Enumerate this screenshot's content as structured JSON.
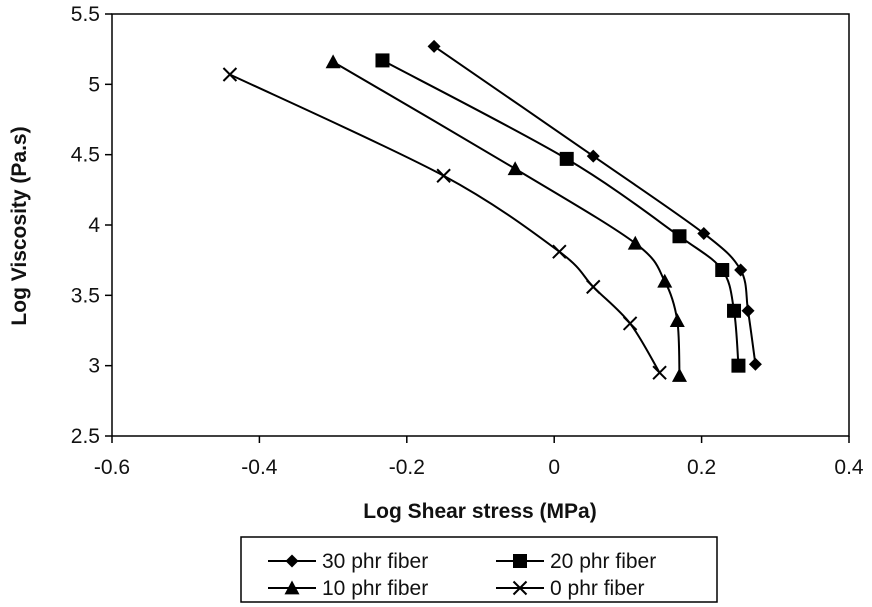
{
  "chart_data": {
    "type": "line",
    "title": "",
    "xlabel": "Log Shear stress (MPa)",
    "ylabel": "Log Viscosity (Pa.s)",
    "xlim": [
      -0.6,
      0.4
    ],
    "ylim": [
      2.5,
      5.5
    ],
    "xticks": [
      "-0.6",
      "-0.4",
      "-0.2",
      "0",
      "0.2",
      "0.4"
    ],
    "yticks": [
      "2.5",
      "3",
      "3.5",
      "4",
      "4.5",
      "5",
      "5.5"
    ],
    "grid": false,
    "legend_position": "bottom",
    "series": [
      {
        "name": "30 phr fiber",
        "marker": "diamond",
        "x": [
          -0.163,
          0.053,
          0.203,
          0.253,
          0.263,
          0.273
        ],
        "y": [
          5.27,
          4.49,
          3.94,
          3.68,
          3.39,
          3.01
        ]
      },
      {
        "name": "20 phr fiber",
        "marker": "square",
        "x": [
          -0.233,
          0.017,
          0.17,
          0.228,
          0.244,
          0.25
        ],
        "y": [
          5.17,
          4.47,
          3.92,
          3.68,
          3.39,
          3.0
        ]
      },
      {
        "name": "10 phr fiber",
        "marker": "triangle",
        "x": [
          -0.3,
          -0.053,
          0.11,
          0.15,
          0.167,
          0.17
        ],
        "y": [
          5.16,
          4.4,
          3.87,
          3.6,
          3.32,
          2.93
        ]
      },
      {
        "name": "0 phr fiber",
        "marker": "x",
        "x": [
          -0.44,
          -0.15,
          0.007,
          0.053,
          0.103,
          0.143
        ],
        "y": [
          5.07,
          4.35,
          3.81,
          3.56,
          3.3,
          2.95
        ]
      }
    ]
  }
}
